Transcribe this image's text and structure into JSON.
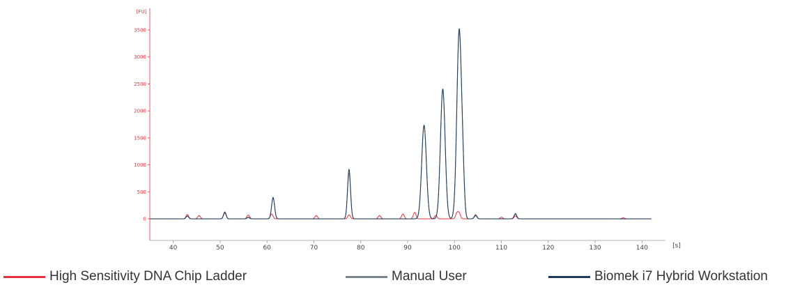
{
  "chart_data": {
    "type": "line",
    "xlabel": "[s]",
    "ylabel": "[FU]",
    "xlim": [
      35,
      145
    ],
    "ylim": [
      -400,
      3900
    ],
    "x_ticks": [
      40,
      50,
      60,
      70,
      80,
      90,
      100,
      110,
      120,
      130,
      140
    ],
    "y_ticks": [
      0,
      500,
      1000,
      1500,
      2000,
      2500,
      3000,
      3500
    ],
    "x_tick_labels": [
      "40",
      "50",
      "60",
      "70",
      "80",
      "90",
      "100",
      "110",
      "120",
      "130",
      "140"
    ],
    "y_tick_labels": [
      "0",
      "500",
      "1000",
      "1500",
      "2000",
      "2500",
      "3000",
      "3500"
    ],
    "grid": false,
    "legend_position": "bottom",
    "series": [
      {
        "name": "High Sensitivity DNA Chip Ladder",
        "color": "#e8313a",
        "baseline": 0,
        "peaks": [
          [
            43,
            80
          ],
          [
            45.5,
            60
          ],
          [
            51,
            110
          ],
          [
            56,
            70
          ],
          [
            61,
            90
          ],
          [
            70.5,
            60
          ],
          [
            77.5,
            75
          ],
          [
            84,
            60
          ],
          [
            89,
            90
          ],
          [
            91.5,
            120
          ],
          [
            96,
            65
          ],
          [
            100.5,
            100
          ],
          [
            101,
            100
          ],
          [
            104.5,
            80
          ],
          [
            110,
            30
          ],
          [
            113,
            55
          ],
          [
            136,
            20
          ]
        ]
      },
      {
        "name": "Manual User",
        "color": "#7a8592",
        "baseline": 0,
        "peaks": [
          [
            43,
            55
          ],
          [
            51,
            130
          ],
          [
            56,
            30
          ],
          [
            61.3,
            400
          ],
          [
            77.5,
            850
          ],
          [
            93.5,
            1740
          ],
          [
            97.5,
            2410
          ],
          [
            101,
            3450
          ],
          [
            101.8,
            520
          ],
          [
            104.5,
            70
          ],
          [
            113,
            100
          ]
        ]
      },
      {
        "name": "Biomek i7 Hybrid Workstation",
        "color": "#1b3a5c",
        "baseline": 0,
        "peaks": [
          [
            43,
            50
          ],
          [
            51,
            120
          ],
          [
            56,
            25
          ],
          [
            61.3,
            390
          ],
          [
            77.5,
            920
          ],
          [
            93.5,
            1730
          ],
          [
            97.5,
            2400
          ],
          [
            101,
            3500
          ],
          [
            101.8,
            540
          ],
          [
            104.5,
            60
          ],
          [
            113,
            90
          ]
        ]
      }
    ]
  },
  "legend": {
    "items": [
      {
        "label": "High Sensitivity DNA Chip Ladder",
        "color": "#e8313a"
      },
      {
        "label": "Manual User",
        "color": "#7a8592"
      },
      {
        "label": "Biomek i7 Hybrid Workstation",
        "color": "#1b3a5c"
      }
    ]
  }
}
